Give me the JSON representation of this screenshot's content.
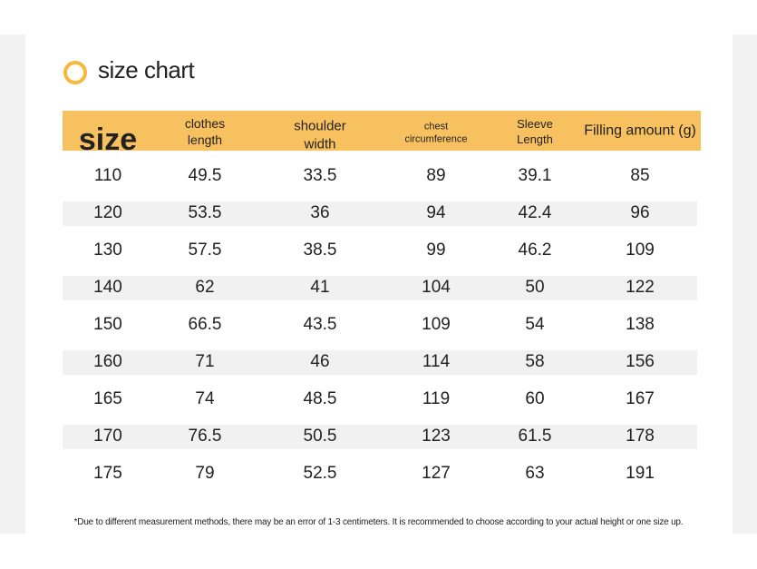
{
  "header": {
    "title": "size chart"
  },
  "table": {
    "columns": [
      "size",
      "clothes length",
      "shoulder width",
      "chest circumference",
      "Sleeve Length",
      "Filling amount (g)"
    ],
    "rows": [
      [
        "110",
        "49.5",
        "33.5",
        "89",
        "39.1",
        "85"
      ],
      [
        "120",
        "53.5",
        "36",
        "94",
        "42.4",
        "96"
      ],
      [
        "130",
        "57.5",
        "38.5",
        "99",
        "46.2",
        "109"
      ],
      [
        "140",
        "62",
        "41",
        "104",
        "50",
        "122"
      ],
      [
        "150",
        "66.5",
        "43.5",
        "109",
        "54",
        "138"
      ],
      [
        "160",
        "71",
        "46",
        "114",
        "58",
        "156"
      ],
      [
        "165",
        "74",
        "48.5",
        "119",
        "60",
        "167"
      ],
      [
        "170",
        "76.5",
        "50.5",
        "123",
        "61.5",
        "178"
      ],
      [
        "175",
        "79",
        "52.5",
        "127",
        "63",
        "191"
      ]
    ]
  },
  "footnote": "*Due to different measurement methods, there may be an error of 1-3 centimeters. It is recommended to choose according to your actual height or one size up."
}
